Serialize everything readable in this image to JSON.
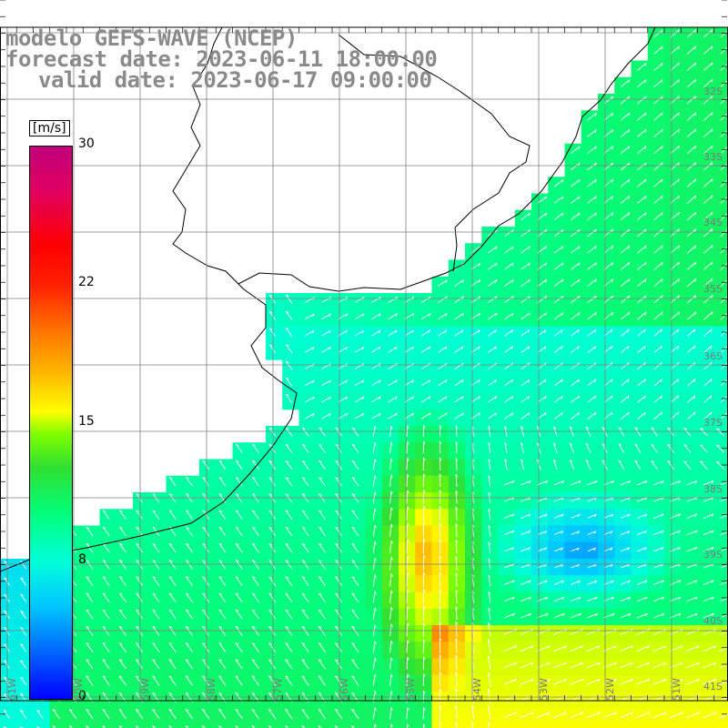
{
  "title": {
    "line1": "modelo GEFS-WAVE (NCEP)",
    "line2": "forecast date: 2023-06-11 18:00:00",
    "line3": "valid date: 2023-06-17 09:00:00"
  },
  "colorbar": {
    "unit": "[m/s]",
    "ticks": [
      "30",
      "22",
      "15",
      "8",
      "0"
    ],
    "colors": [
      "#0000ff",
      "#00c8ff",
      "#00ff80",
      "#80ff00",
      "#ffff00",
      "#ff7000",
      "#ff0000",
      "#c0007a"
    ]
  },
  "lat_labels": [
    "32S",
    "33S",
    "34S",
    "35S",
    "36S",
    "37S",
    "38S",
    "39S",
    "40S",
    "41S"
  ],
  "lon_labels": [
    "61W",
    "60W",
    "59W",
    "58W",
    "57W",
    "56W",
    "55W",
    "54W",
    "53W",
    "52W",
    "51W"
  ],
  "map_style": {
    "land_color": "#ffffff",
    "grid_color": "#7f7f7f",
    "coast_color": "#000000",
    "arrow_color": "#ffffff"
  }
}
